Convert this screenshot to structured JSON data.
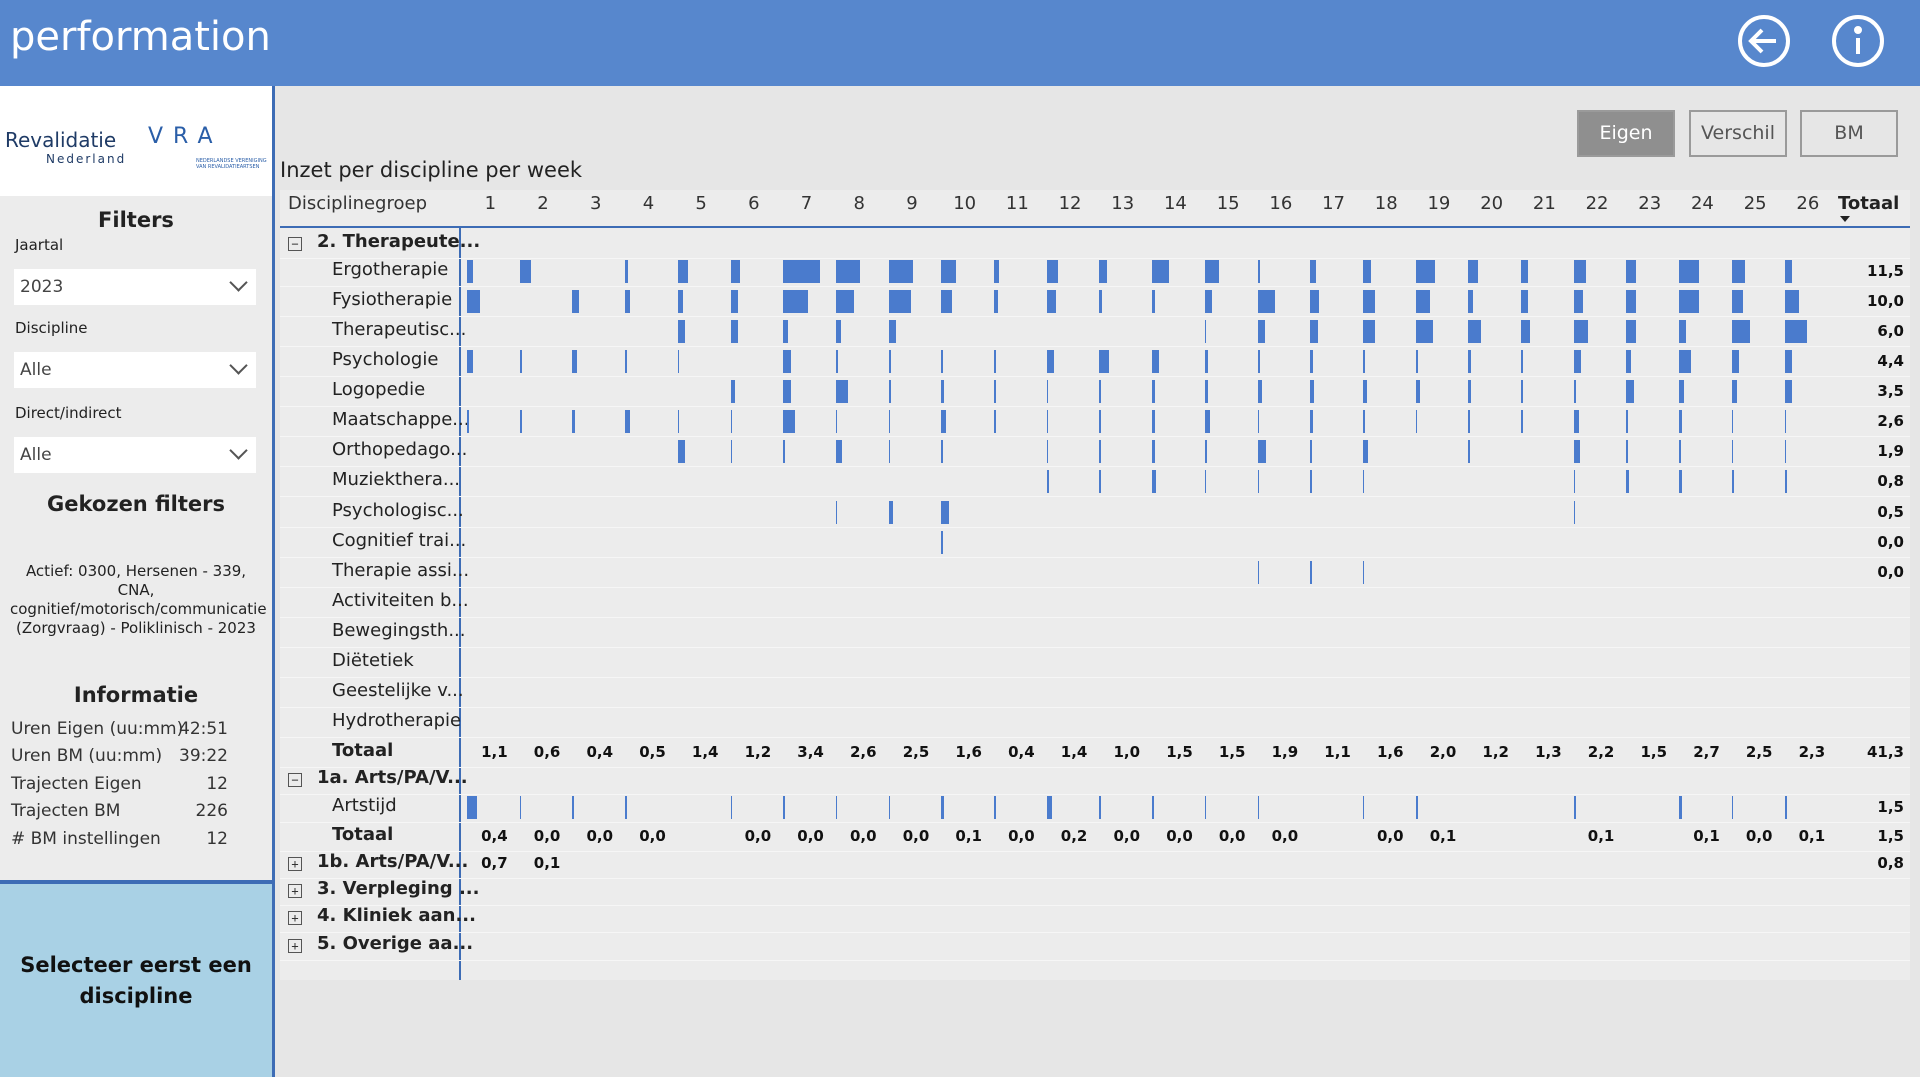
{
  "header": {
    "logo": "performation"
  },
  "logos": {
    "revalidatie": "Revalidatie",
    "nederland": "Nederland",
    "vra": "VRA",
    "vra_sub": "NEDERLANDSE VERENIGING VAN REVALIDATIEARTSEN"
  },
  "sidebar": {
    "filters_title": "Filters",
    "filters": [
      {
        "label": "Jaartal",
        "value": "2023"
      },
      {
        "label": "Discipline",
        "value": "Alle"
      },
      {
        "label": "Direct/indirect",
        "value": "Alle"
      }
    ],
    "chosen_title": "Gekozen filters",
    "chosen_text": "Actief: 0300, Hersenen - 339, CNA, cognitief/motorisch/communicatie (Zorgvraag) - Poliklinisch - 2023",
    "info_title": "Informatie",
    "info": [
      {
        "label": "Uren Eigen (uu:mm)",
        "value": "42:51"
      },
      {
        "label": "Uren BM (uu:mm)",
        "value": "39:22"
      },
      {
        "label": "Trajecten Eigen",
        "value": "12"
      },
      {
        "label": "Trajecten BM",
        "value": "226"
      },
      {
        "label": "# BM instellingen",
        "value": "12"
      }
    ],
    "notice": "Selecteer eerst een discipline"
  },
  "buttons": [
    "Eigen",
    "Verschil",
    "BM"
  ],
  "report": {
    "title": "Inzet per discipline per week",
    "columns": {
      "group": "Disciplinegroep",
      "weeks": [
        1,
        2,
        3,
        4,
        5,
        6,
        7,
        8,
        9,
        10,
        11,
        12,
        13,
        14,
        15,
        16,
        17,
        18,
        19,
        20,
        21,
        22,
        23,
        24,
        25,
        26
      ],
      "total": "Totaal"
    },
    "rows": [
      {
        "label": "2. Therapeute...",
        "kind": "group-open"
      },
      {
        "label": "Ergotherapie",
        "kind": "sub",
        "bars": [
          0.25,
          0.45,
          null,
          0.1,
          0.4,
          0.4,
          1.5,
          1.0,
          1.0,
          0.6,
          0.2,
          0.45,
          0.3,
          0.7,
          0.6,
          0.1,
          0.25,
          0.35,
          0.8,
          0.4,
          0.3,
          0.5,
          0.4,
          0.8,
          0.55,
          0.3
        ],
        "total": "11,5"
      },
      {
        "label": "Fysiotherapie",
        "kind": "sub",
        "bars": [
          0.55,
          null,
          0.25,
          0.2,
          0.2,
          0.3,
          1.0,
          0.75,
          0.9,
          0.45,
          0.15,
          0.4,
          0.1,
          0.1,
          0.3,
          0.7,
          0.35,
          0.5,
          0.6,
          0.2,
          0.3,
          0.4,
          0.4,
          0.8,
          0.45,
          0.6
        ],
        "total": "10,0"
      },
      {
        "label": "Therapeutisc...",
        "kind": "sub",
        "bars": [
          null,
          null,
          null,
          null,
          0.3,
          0.3,
          0.2,
          0.2,
          0.3,
          null,
          null,
          null,
          null,
          null,
          0.05,
          0.3,
          0.3,
          0.5,
          0.7,
          0.5,
          0.35,
          0.6,
          0.4,
          0.3,
          0.75,
          0.9
        ],
        "total": "6,0"
      },
      {
        "label": "Psychologie",
        "kind": "sub",
        "bars": [
          0.25,
          0.1,
          0.2,
          0.05,
          0.05,
          null,
          0.3,
          0.1,
          0.1,
          0.05,
          0.05,
          0.3,
          0.4,
          0.3,
          0.15,
          0.1,
          0.1,
          0.1,
          0.1,
          0.1,
          0.1,
          0.3,
          0.2,
          0.5,
          0.3,
          0.3
        ],
        "total": "4,4"
      },
      {
        "label": "Logopedie",
        "kind": "sub",
        "bars": [
          null,
          null,
          null,
          null,
          null,
          0.2,
          0.3,
          0.5,
          0.1,
          0.1,
          0.05,
          0.05,
          0.05,
          0.1,
          0.15,
          0.2,
          0.15,
          0.15,
          0.2,
          0.1,
          0.1,
          0.1,
          0.3,
          0.2,
          0.2,
          0.3
        ],
        "total": "3,5"
      },
      {
        "label": "Maatschappe...",
        "kind": "sub",
        "bars": [
          0.1,
          0.1,
          0.1,
          0.2,
          0.05,
          0.05,
          0.5,
          0.05,
          0.05,
          0.2,
          0.05,
          0.05,
          0.05,
          0.1,
          0.2,
          0.05,
          0.1,
          0.1,
          0.05,
          0.05,
          0.05,
          0.2,
          0.05,
          0.1,
          0.05,
          0.05
        ],
        "total": "2,6"
      },
      {
        "label": "Orthopedago...",
        "kind": "sub",
        "bars": [
          null,
          null,
          null,
          null,
          0.3,
          0.05,
          0.05,
          0.25,
          0.05,
          0.05,
          null,
          0.05,
          0.05,
          0.1,
          0.1,
          0.35,
          0.05,
          0.2,
          null,
          0.05,
          null,
          0.25,
          0.05,
          0.05,
          0.05,
          0.05
        ],
        "total": "1,9"
      },
      {
        "label": "Muziekthera...",
        "kind": "sub",
        "bars": [
          null,
          null,
          null,
          null,
          null,
          null,
          null,
          null,
          null,
          null,
          null,
          0.1,
          0.05,
          0.15,
          0.05,
          0.05,
          0.05,
          0.05,
          null,
          null,
          null,
          0.05,
          0.1,
          0.1,
          0.1,
          0.1
        ],
        "total": "0,8"
      },
      {
        "label": "Psychologisc...",
        "kind": "sub",
        "bars": [
          null,
          null,
          null,
          null,
          null,
          null,
          null,
          0.05,
          0.2,
          0.3,
          null,
          null,
          null,
          null,
          null,
          null,
          null,
          null,
          null,
          null,
          null,
          0.05,
          null,
          null,
          null,
          null
        ],
        "total": "0,5"
      },
      {
        "label": "Cognitief trai...",
        "kind": "sub",
        "bars": [
          null,
          null,
          null,
          null,
          null,
          null,
          null,
          null,
          null,
          0.05,
          null,
          null,
          null,
          null,
          null,
          null,
          null,
          null,
          null,
          null,
          null,
          null,
          null,
          null,
          null,
          null
        ],
        "total": "0,0"
      },
      {
        "label": "Therapie assi...",
        "kind": "sub",
        "bars": [
          null,
          null,
          null,
          null,
          null,
          null,
          null,
          null,
          null,
          null,
          null,
          null,
          null,
          null,
          null,
          0.05,
          0.05,
          0.05,
          null,
          null,
          null,
          null,
          null,
          null,
          null,
          null
        ],
        "total": "0,0"
      },
      {
        "label": "Activiteiten b...",
        "kind": "sub"
      },
      {
        "label": "Bewegingsth...",
        "kind": "sub"
      },
      {
        "label": "Diëtetiek",
        "kind": "sub"
      },
      {
        "label": "Geestelijke v...",
        "kind": "sub"
      },
      {
        "label": "Hydrotherapie",
        "kind": "sub"
      },
      {
        "label": "Totaal",
        "kind": "total",
        "cells": [
          "1,1",
          "0,6",
          "0,4",
          "0,5",
          "1,4",
          "1,2",
          "3,4",
          "2,6",
          "2,5",
          "1,6",
          "0,4",
          "1,4",
          "1,0",
          "1,5",
          "1,5",
          "1,9",
          "1,1",
          "1,6",
          "2,0",
          "1,2",
          "1,3",
          "2,2",
          "1,5",
          "2,7",
          "2,5",
          "2,3"
        ],
        "total": "41,3"
      },
      {
        "label": "1a. Arts/PA/V...",
        "kind": "group-open"
      },
      {
        "label": "Artstijd",
        "kind": "sub",
        "bars": [
          0.4,
          0.05,
          0.05,
          0.05,
          null,
          0.05,
          0.05,
          0.05,
          0.05,
          0.1,
          0.05,
          0.2,
          0.05,
          0.05,
          0.05,
          0.05,
          null,
          0.05,
          0.1,
          null,
          null,
          0.1,
          null,
          0.1,
          0.05,
          0.1
        ],
        "total": "1,5"
      },
      {
        "label": "Totaal",
        "kind": "total",
        "cells": [
          "0,4",
          "0,0",
          "0,0",
          "0,0",
          null,
          "0,0",
          "0,0",
          "0,0",
          "0,0",
          "0,1",
          "0,0",
          "0,2",
          "0,0",
          "0,0",
          "0,0",
          "0,0",
          null,
          "0,0",
          "0,1",
          null,
          null,
          "0,1",
          null,
          "0,1",
          "0,0",
          "0,1"
        ],
        "total": "1,5"
      },
      {
        "label": "1b. Arts/PA/V...",
        "kind": "group-closed",
        "cells": [
          "0,7",
          "0,1",
          null,
          null,
          null,
          null,
          null,
          null,
          null,
          null,
          null,
          null,
          null,
          null,
          null,
          null,
          null,
          null,
          null,
          null,
          null,
          null,
          null,
          null,
          null,
          null
        ],
        "total": "0,8"
      },
      {
        "label": "3. Verpleging ...",
        "kind": "group-closed"
      },
      {
        "label": "4. Kliniek aan...",
        "kind": "group-closed"
      },
      {
        "label": "5. Overige aa...",
        "kind": "group-closed"
      }
    ]
  }
}
